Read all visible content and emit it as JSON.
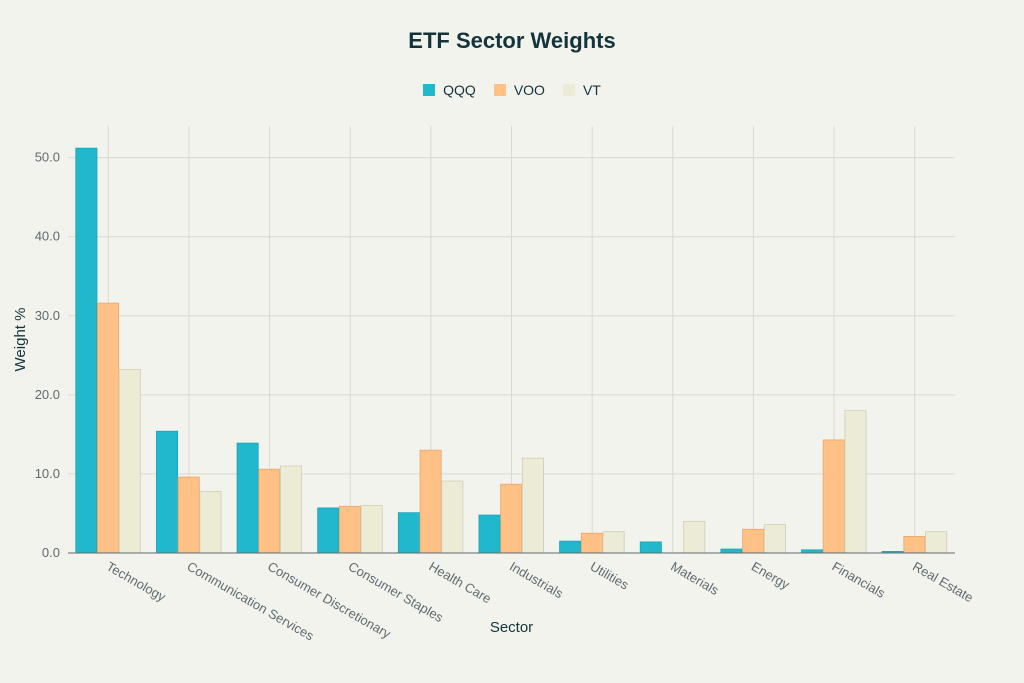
{
  "chart_data": {
    "type": "bar",
    "title": "ETF Sector Weights",
    "xlabel": "Sector",
    "ylabel": "Weight %",
    "ylim": [
      0,
      54
    ],
    "yticks": [
      "0.0",
      "10.0",
      "20.0",
      "30.0",
      "40.0",
      "50.0"
    ],
    "grid": true,
    "legend_position": "top-center",
    "categories": [
      "Technology",
      "Communication Services",
      "Consumer Discretionary",
      "Consumer Staples",
      "Health Care",
      "Industrials",
      "Utilities",
      "Materials",
      "Energy",
      "Financials",
      "Real Estate"
    ],
    "series": [
      {
        "name": "QQQ",
        "color": "#21b8cd",
        "values": [
          51.2,
          15.4,
          13.9,
          5.7,
          5.1,
          4.8,
          1.5,
          1.4,
          0.5,
          0.4,
          0.2
        ]
      },
      {
        "name": "VOO",
        "color": "#ffc185",
        "values": [
          31.6,
          9.6,
          10.6,
          5.9,
          13.0,
          8.7,
          2.5,
          0.0,
          3.0,
          14.3,
          2.1
        ]
      },
      {
        "name": "VT",
        "color": "#ecebd5",
        "values": [
          23.2,
          7.8,
          11.0,
          6.0,
          9.1,
          12.0,
          2.7,
          4.0,
          3.6,
          18.0,
          2.7
        ]
      }
    ]
  }
}
